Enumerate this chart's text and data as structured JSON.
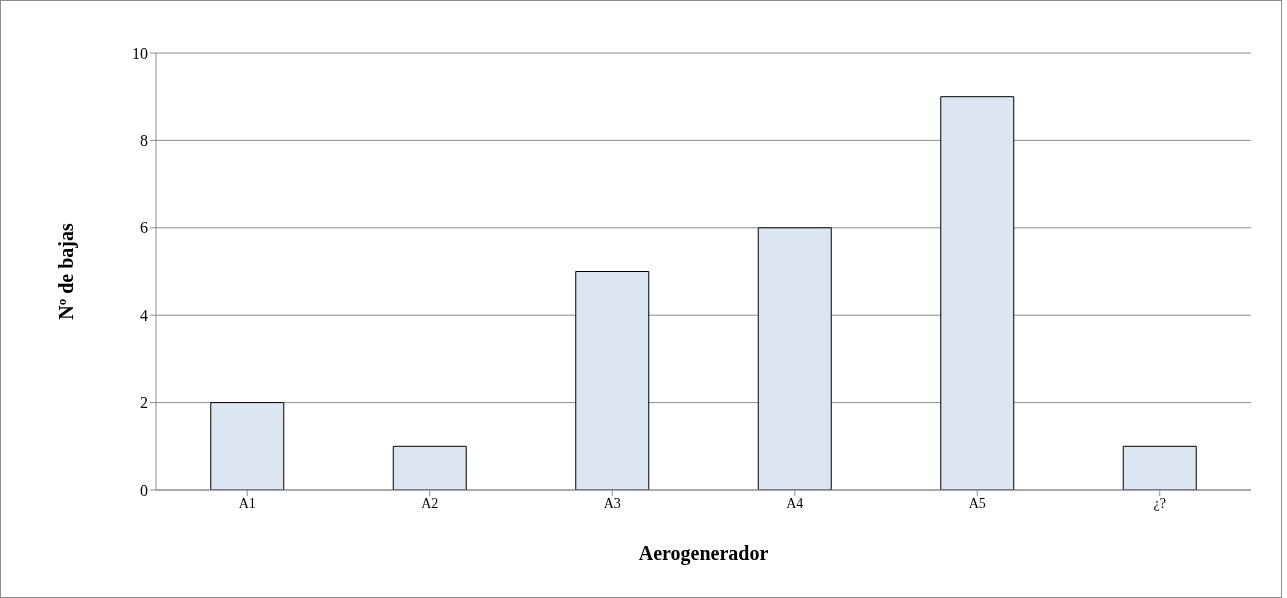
{
  "chart_data": {
    "type": "bar",
    "xlabel": "Aerogenerador",
    "ylabel": "Nº de bajas",
    "categories": [
      "A1",
      "A2",
      "A3",
      "A4",
      "A5",
      "¿?"
    ],
    "values": [
      2,
      1,
      5,
      6,
      9,
      1
    ],
    "color": "#dce6f2",
    "ylim": [
      0,
      10
    ],
    "yticks": [
      0,
      2,
      4,
      6,
      8,
      10
    ],
    "grid": "y",
    "legend": false
  }
}
